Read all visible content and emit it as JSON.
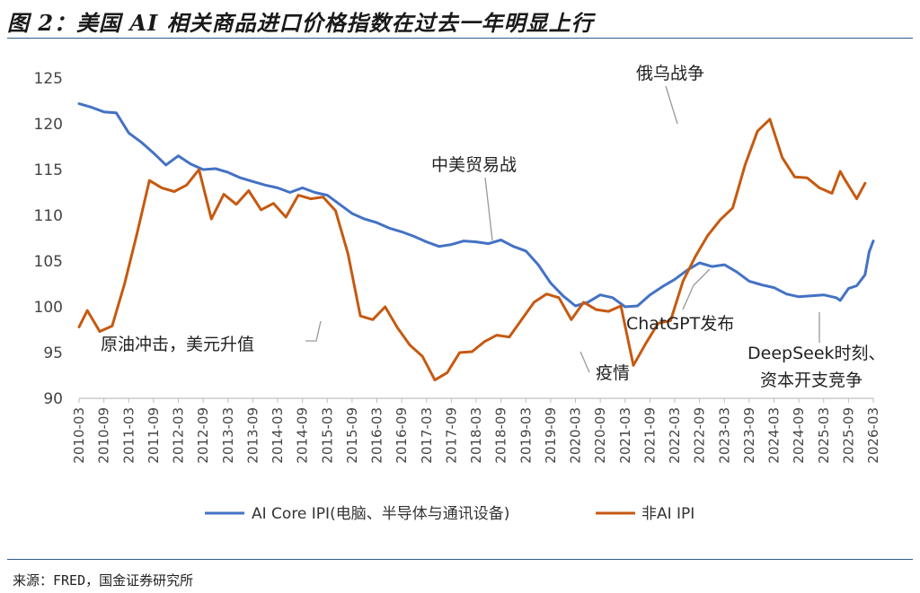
{
  "title": "图 2：美国 AI 相关商品进口价格指数在过去一年明显上行",
  "source": "来源：FRED，国金证券研究所",
  "chart_data": {
    "type": "line",
    "ylim": [
      90,
      125
    ],
    "yticks": [
      90,
      95,
      100,
      105,
      110,
      115,
      120,
      125
    ],
    "xlim": [
      "2010-03",
      "2026-03"
    ],
    "xticks": [
      "2010-03",
      "2010-09",
      "2011-03",
      "2011-09",
      "2012-03",
      "2012-09",
      "2013-03",
      "2013-09",
      "2014-03",
      "2014-09",
      "2015-03",
      "2015-09",
      "2016-03",
      "2016-09",
      "2017-03",
      "2017-09",
      "2018-03",
      "2018-09",
      "2019-03",
      "2019-09",
      "2020-03",
      "2020-09",
      "2021-03",
      "2021-09",
      "2022-03",
      "2022-09",
      "2023-03",
      "2023-09",
      "2024-03",
      "2024-09",
      "2025-03",
      "2025-09",
      "2026-03"
    ],
    "grid": false,
    "legend_position": "bottom",
    "colors": {
      "ai_core": "#4472c4",
      "non_ai": "#c55a11"
    },
    "series": [
      {
        "name": "AI Core IPI(电脑、半导体与通讯设备)",
        "color": "#4472c4",
        "points": [
          [
            "2010-03",
            122.2
          ],
          [
            "2010-06",
            121.8
          ],
          [
            "2010-09",
            121.3
          ],
          [
            "2010-12",
            121.2
          ],
          [
            "2011-03",
            119.0
          ],
          [
            "2011-06",
            118.0
          ],
          [
            "2011-09",
            116.8
          ],
          [
            "2011-12",
            115.5
          ],
          [
            "2012-03",
            116.5
          ],
          [
            "2012-06",
            115.6
          ],
          [
            "2012-09",
            115.0
          ],
          [
            "2012-12",
            115.1
          ],
          [
            "2013-03",
            114.7
          ],
          [
            "2013-06",
            114.1
          ],
          [
            "2013-09",
            113.7
          ],
          [
            "2013-12",
            113.3
          ],
          [
            "2014-03",
            113.0
          ],
          [
            "2014-06",
            112.5
          ],
          [
            "2014-09",
            113.0
          ],
          [
            "2014-12",
            112.5
          ],
          [
            "2015-03",
            112.2
          ],
          [
            "2015-06",
            111.2
          ],
          [
            "2015-09",
            110.2
          ],
          [
            "2015-12",
            109.6
          ],
          [
            "2016-03",
            109.2
          ],
          [
            "2016-06",
            108.6
          ],
          [
            "2016-09",
            108.2
          ],
          [
            "2016-12",
            107.7
          ],
          [
            "2017-03",
            107.1
          ],
          [
            "2017-06",
            106.6
          ],
          [
            "2017-09",
            106.8
          ],
          [
            "2017-12",
            107.2
          ],
          [
            "2018-03",
            107.1
          ],
          [
            "2018-06",
            106.9
          ],
          [
            "2018-09",
            107.3
          ],
          [
            "2018-12",
            106.6
          ],
          [
            "2019-03",
            106.1
          ],
          [
            "2019-06",
            104.6
          ],
          [
            "2019-09",
            102.6
          ],
          [
            "2019-12",
            101.2
          ],
          [
            "2020-03",
            100.1
          ],
          [
            "2020-06",
            100.5
          ],
          [
            "2020-09",
            101.3
          ],
          [
            "2020-12",
            101.0
          ],
          [
            "2021-03",
            100.0
          ],
          [
            "2021-06",
            100.1
          ],
          [
            "2021-09",
            101.3
          ],
          [
            "2021-12",
            102.2
          ],
          [
            "2022-03",
            103.0
          ],
          [
            "2022-06",
            104.0
          ],
          [
            "2022-09",
            104.8
          ],
          [
            "2022-12",
            104.4
          ],
          [
            "2023-03",
            104.6
          ],
          [
            "2023-06",
            103.8
          ],
          [
            "2023-09",
            102.8
          ],
          [
            "2023-12",
            102.4
          ],
          [
            "2024-03",
            102.1
          ],
          [
            "2024-06",
            101.4
          ],
          [
            "2024-09",
            101.1
          ],
          [
            "2024-12",
            101.2
          ],
          [
            "2025-03",
            101.3
          ],
          [
            "2025-06",
            101.0
          ],
          [
            "2025-07",
            100.7
          ],
          [
            "2025-09",
            102.0
          ],
          [
            "2025-11",
            102.3
          ],
          [
            "2026-01",
            103.5
          ],
          [
            "2026-02",
            106.0
          ],
          [
            "2026-03",
            107.2
          ]
        ]
      },
      {
        "name": "非AI IPI",
        "color": "#c55a11",
        "points": [
          [
            "2010-03",
            97.8
          ],
          [
            "2010-05",
            99.6
          ],
          [
            "2010-08",
            97.3
          ],
          [
            "2010-11",
            97.9
          ],
          [
            "2011-02",
            102.5
          ],
          [
            "2011-05",
            108.0
          ],
          [
            "2011-08",
            113.8
          ],
          [
            "2011-11",
            113.0
          ],
          [
            "2012-02",
            112.6
          ],
          [
            "2012-05",
            113.3
          ],
          [
            "2012-08",
            115.0
          ],
          [
            "2012-11",
            109.6
          ],
          [
            "2013-02",
            112.3
          ],
          [
            "2013-05",
            111.2
          ],
          [
            "2013-08",
            112.7
          ],
          [
            "2013-11",
            110.6
          ],
          [
            "2014-02",
            111.3
          ],
          [
            "2014-05",
            109.8
          ],
          [
            "2014-08",
            112.2
          ],
          [
            "2014-11",
            111.8
          ],
          [
            "2015-02",
            112.0
          ],
          [
            "2015-05",
            110.5
          ],
          [
            "2015-08",
            105.8
          ],
          [
            "2015-11",
            99.0
          ],
          [
            "2016-02",
            98.6
          ],
          [
            "2016-05",
            100.0
          ],
          [
            "2016-08",
            97.7
          ],
          [
            "2016-11",
            95.8
          ],
          [
            "2017-02",
            94.6
          ],
          [
            "2017-05",
            92.0
          ],
          [
            "2017-08",
            92.8
          ],
          [
            "2017-11",
            95.0
          ],
          [
            "2018-02",
            95.1
          ],
          [
            "2018-05",
            96.2
          ],
          [
            "2018-08",
            96.9
          ],
          [
            "2018-11",
            96.7
          ],
          [
            "2019-02",
            98.6
          ],
          [
            "2019-05",
            100.5
          ],
          [
            "2019-08",
            101.4
          ],
          [
            "2019-11",
            101.0
          ],
          [
            "2020-02",
            98.6
          ],
          [
            "2020-05",
            100.5
          ],
          [
            "2020-08",
            99.7
          ],
          [
            "2020-11",
            99.5
          ],
          [
            "2021-02",
            100.1
          ],
          [
            "2021-05",
            93.6
          ],
          [
            "2021-08",
            96.0
          ],
          [
            "2021-11",
            98.2
          ],
          [
            "2022-02",
            98.5
          ],
          [
            "2022-05",
            102.8
          ],
          [
            "2022-08",
            105.5
          ],
          [
            "2022-11",
            107.8
          ],
          [
            "2023-02",
            109.5
          ],
          [
            "2023-05",
            110.8
          ],
          [
            "2023-08",
            115.5
          ],
          [
            "2023-11",
            119.2
          ],
          [
            "2024-02",
            120.5
          ],
          [
            "2024-05",
            116.3
          ],
          [
            "2024-08",
            114.2
          ],
          [
            "2024-11",
            114.1
          ],
          [
            "2025-02",
            113.0
          ],
          [
            "2025-05",
            112.4
          ],
          [
            "2025-08",
            114.0
          ],
          [
            "2025-11",
            111.8
          ],
          [
            "2026-01",
            113.5
          ],
          [
            "2025-07",
            114.8
          ]
        ]
      }
    ],
    "annotations": [
      {
        "text": "原油冲击，美元升值"
      },
      {
        "text": "中美贸易战"
      },
      {
        "text": "俄乌战争"
      },
      {
        "text": "疫情"
      },
      {
        "text": "ChatGPT发布"
      },
      {
        "text": "DeepSeek时刻、"
      },
      {
        "text": "资本开支竞争"
      }
    ]
  }
}
